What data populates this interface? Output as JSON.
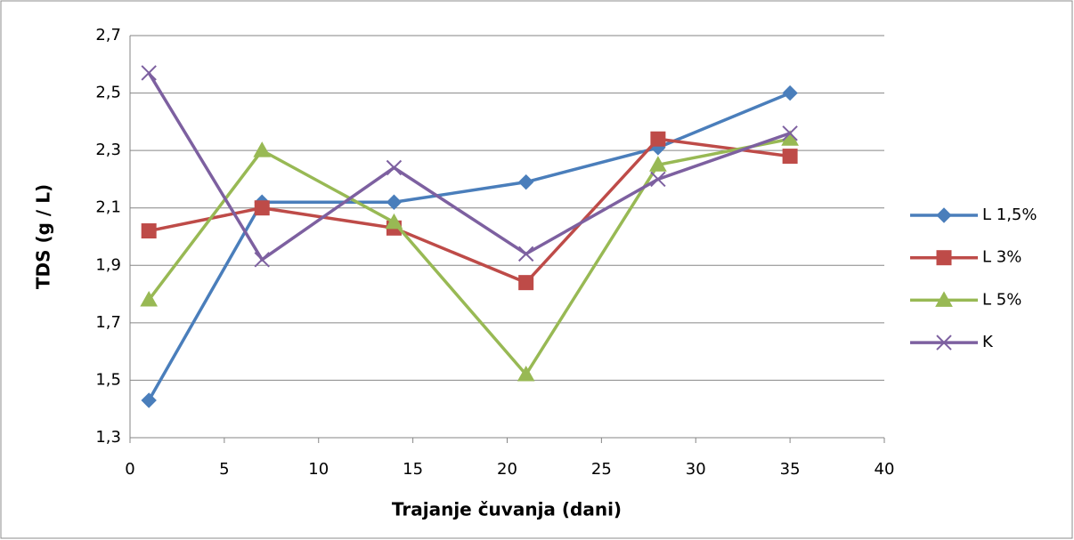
{
  "chart_data": {
    "type": "line",
    "x_label": "Trajanje čuvanja (dani)",
    "y_label": "TDS (g / L)",
    "x": [
      1,
      7,
      14,
      21,
      28,
      35
    ],
    "series": [
      {
        "name": "L 1,5%",
        "color": "#4a7ebb",
        "marker": "diamond",
        "values": [
          1.43,
          2.12,
          2.12,
          2.19,
          2.31,
          2.5
        ]
      },
      {
        "name": "L 3%",
        "color": "#be4b48",
        "marker": "square",
        "values": [
          2.02,
          2.1,
          2.03,
          1.84,
          2.34,
          2.28
        ]
      },
      {
        "name": "L 5%",
        "color": "#98b954",
        "marker": "triangle",
        "values": [
          1.78,
          2.3,
          2.05,
          1.52,
          2.25,
          2.34
        ]
      },
      {
        "name": "K",
        "color": "#7d60a0",
        "marker": "x",
        "values": [
          2.57,
          1.92,
          2.24,
          1.94,
          2.2,
          2.36
        ]
      }
    ],
    "xlim": [
      0,
      40
    ],
    "xticks": [
      0,
      5,
      10,
      15,
      20,
      25,
      30,
      35,
      40
    ],
    "ylim": [
      1.3,
      2.7
    ],
    "yticks": [
      {
        "value": 1.3,
        "label": "1,3"
      },
      {
        "value": 1.5,
        "label": "1,5"
      },
      {
        "value": 1.7,
        "label": "1,7"
      },
      {
        "value": 1.9,
        "label": "1,9"
      },
      {
        "value": 2.1,
        "label": "2,1"
      },
      {
        "value": 2.3,
        "label": "2,3"
      },
      {
        "value": 2.5,
        "label": "2,5"
      },
      {
        "value": 2.7,
        "label": "2,7"
      }
    ],
    "grid": true,
    "legend": "right"
  }
}
